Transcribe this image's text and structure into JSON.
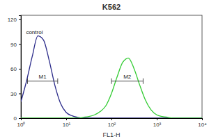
{
  "chart_data": {
    "type": "line",
    "title": "K562",
    "x_label": "FL1-H",
    "log": "x",
    "x": [
      1,
      1.33,
      1.78,
      2.37,
      3.16,
      4.22,
      5.62,
      7.5,
      10,
      13.3,
      17.8,
      23.7,
      31.6,
      42.2,
      56.2,
      75,
      100,
      133,
      178,
      237,
      316,
      422,
      562,
      750,
      1000,
      1333,
      1778,
      2371,
      3162,
      4217,
      5623,
      7499,
      10000
    ],
    "series": [
      {
        "color": "#2b2b8a",
        "values": [
          20,
          45,
          75,
          100,
          95,
          70,
          40,
          18,
          7,
          3,
          1,
          0,
          0,
          0,
          0,
          0,
          0,
          0,
          0,
          0,
          0,
          0,
          0,
          0,
          0,
          0,
          0,
          0,
          0,
          0,
          0,
          0,
          0
        ]
      },
      {
        "color": "#33cc33",
        "values": [
          0,
          0,
          0,
          0,
          0,
          0,
          0,
          0,
          0,
          0,
          0,
          1,
          2,
          4,
          8,
          15,
          30,
          50,
          68,
          73,
          60,
          40,
          22,
          10,
          4,
          2,
          1,
          0,
          0,
          0,
          0,
          0,
          0
        ]
      }
    ],
    "xlim": [
      1,
      10000
    ],
    "xticks": [
      {
        "value": 1,
        "label": "10⁰"
      },
      {
        "value": 10,
        "label": "10¹"
      },
      {
        "value": 100,
        "label": "10²"
      },
      {
        "value": 1000,
        "label": "10³"
      },
      {
        "value": 10000,
        "label": "10⁴"
      }
    ],
    "ylim": [
      0,
      125
    ],
    "yticks": [
      0,
      30,
      60,
      90,
      120
    ],
    "annotations": [
      {
        "text": "control",
        "x": 1.3,
        "y": 102
      },
      {
        "text": "M1",
        "x": [
          1.4,
          6.5
        ],
        "y": 45
      },
      {
        "text": "M2",
        "x": [
          100,
          500
        ],
        "y": 45
      }
    ]
  }
}
